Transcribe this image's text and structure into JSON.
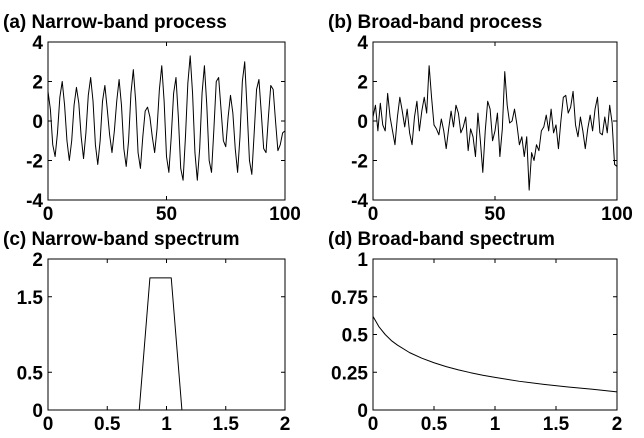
{
  "chart_data": [
    {
      "type": "line",
      "title": "(a) Narrow-band process",
      "xlabel": "",
      "ylabel": "",
      "xlim": [
        0,
        100
      ],
      "ylim": [
        -4,
        4
      ],
      "xticks": [
        0,
        50,
        100
      ],
      "xtick_labels": [
        "0",
        "50",
        "100"
      ],
      "yticks": [
        -4,
        -2,
        0,
        2,
        4
      ],
      "ytick_labels": [
        "-4",
        "-2",
        "0",
        "2",
        "4"
      ],
      "grid": false,
      "series": [
        {
          "x": [
            0,
            1,
            2,
            3,
            4,
            5,
            6,
            7,
            8,
            9,
            10,
            11,
            12,
            13,
            14,
            15,
            16,
            17,
            18,
            19,
            20,
            21,
            22,
            23,
            24,
            25,
            26,
            27,
            28,
            29,
            30,
            31,
            32,
            33,
            34,
            35,
            36,
            37,
            38,
            39,
            40,
            41,
            42,
            43,
            44,
            45,
            46,
            47,
            48,
            49,
            50,
            51,
            52,
            53,
            54,
            55,
            56,
            57,
            58,
            59,
            60,
            61,
            62,
            63,
            64,
            65,
            66,
            67,
            68,
            69,
            70,
            71,
            72,
            73,
            74,
            75,
            76,
            77,
            78,
            79,
            80,
            81,
            82,
            83,
            84,
            85,
            86,
            87,
            88,
            89,
            90,
            91,
            92,
            93,
            94,
            95,
            96,
            97,
            98,
            99,
            100
          ],
          "y": [
            1.5,
            0.6,
            -1.2,
            -1.8,
            -0.6,
            1.2,
            2.0,
            0.8,
            -1.0,
            -2.0,
            -1.0,
            0.8,
            1.7,
            0.9,
            -0.8,
            -1.9,
            -0.6,
            1.3,
            2.2,
            1.0,
            -1.2,
            -2.2,
            -1.0,
            1.0,
            1.8,
            0.6,
            -0.7,
            -1.6,
            -0.5,
            1.0,
            2.1,
            0.8,
            -1.4,
            -2.3,
            -1.0,
            1.4,
            2.6,
            1.0,
            -1.6,
            -2.4,
            -0.8,
            0.5,
            0.7,
            0.2,
            -0.8,
            -1.6,
            -0.4,
            1.6,
            2.8,
            1.0,
            -1.8,
            -2.6,
            -0.8,
            1.4,
            2.2,
            0.2,
            -2.4,
            -3.0,
            -0.8,
            1.9,
            3.3,
            1.4,
            -1.6,
            -3.0,
            -1.4,
            1.4,
            2.8,
            0.8,
            -2.0,
            -2.6,
            -0.4,
            2.0,
            2.2,
            0.6,
            -1.0,
            -1.3,
            0.2,
            1.3,
            0.4,
            -1.4,
            -2.6,
            -0.8,
            2.0,
            3.0,
            0.6,
            -2.0,
            -2.7,
            -0.6,
            1.6,
            2.1,
            0.4,
            -1.4,
            -1.6,
            0.2,
            1.8,
            1.6,
            0.0,
            -1.5,
            -1.2,
            -0.6,
            -0.5
          ]
        }
      ]
    },
    {
      "type": "line",
      "title": "(b) Broad-band process",
      "xlabel": "",
      "ylabel": "",
      "xlim": [
        0,
        100
      ],
      "ylim": [
        -4,
        4
      ],
      "xticks": [
        0,
        50,
        100
      ],
      "xtick_labels": [
        "0",
        "50",
        "100"
      ],
      "yticks": [
        -4,
        -2,
        0,
        2,
        4
      ],
      "ytick_labels": [
        "-4",
        "-2",
        "0",
        "2",
        "4"
      ],
      "grid": false,
      "series": [
        {
          "x": [
            0,
            1,
            2,
            3,
            4,
            5,
            6,
            7,
            8,
            9,
            10,
            11,
            12,
            13,
            14,
            15,
            16,
            17,
            18,
            19,
            20,
            21,
            22,
            23,
            24,
            25,
            26,
            27,
            28,
            29,
            30,
            31,
            32,
            33,
            34,
            35,
            36,
            37,
            38,
            39,
            40,
            41,
            42,
            43,
            44,
            45,
            46,
            47,
            48,
            49,
            50,
            51,
            52,
            53,
            54,
            55,
            56,
            57,
            58,
            59,
            60,
            61,
            62,
            63,
            64,
            65,
            66,
            67,
            68,
            69,
            70,
            71,
            72,
            73,
            74,
            75,
            76,
            77,
            78,
            79,
            80,
            81,
            82,
            83,
            84,
            85,
            86,
            87,
            88,
            89,
            90,
            91,
            92,
            93,
            94,
            95,
            96,
            97,
            98,
            99,
            100
          ],
          "y": [
            0.2,
            0.8,
            -0.5,
            0.9,
            -0.2,
            -0.5,
            1.4,
            0.2,
            -0.5,
            -1.2,
            0.2,
            1.2,
            0.5,
            -0.3,
            0.6,
            -0.6,
            -1.2,
            0.2,
            1.0,
            -0.5,
            0.5,
            1.2,
            0.4,
            2.8,
            1.2,
            -0.2,
            -0.4,
            -0.7,
            0.1,
            -0.5,
            -1.4,
            -0.4,
            0.5,
            -0.3,
            0.8,
            0.4,
            -0.6,
            -0.3,
            0.2,
            -1.5,
            -0.4,
            -0.8,
            -1.8,
            0.4,
            -1.0,
            -2.6,
            -0.5,
            1.0,
            0.6,
            -1.0,
            -0.5,
            0.4,
            -1.8,
            -0.4,
            2.5,
            0.8,
            -0.1,
            0.0,
            0.6,
            -0.2,
            -1.2,
            -0.8,
            -1.8,
            -0.8,
            -3.5,
            -1.6,
            -2.0,
            -1.2,
            -1.5,
            -0.5,
            -0.3,
            0.3,
            -0.5,
            0.6,
            -0.6,
            -0.2,
            -1.4,
            0.0,
            1.2,
            1.3,
            0.4,
            0.7,
            1.5,
            -0.2,
            -0.8,
            0.2,
            -0.5,
            -1.4,
            -0.4,
            0.3,
            -0.5,
            0.6,
            1.2,
            -0.6,
            -0.7,
            0.2,
            -0.6,
            0.8,
            -0.1,
            -2.2,
            -2.3
          ]
        }
      ]
    },
    {
      "type": "line",
      "title": "(c) Narrow-band spectrum",
      "xlabel": "",
      "ylabel": "",
      "xlim": [
        0,
        2
      ],
      "ylim": [
        0,
        2
      ],
      "xticks": [
        0,
        0.5,
        1,
        1.5,
        2
      ],
      "xtick_labels": [
        "0",
        "0.5",
        "1",
        "1.5",
        "2"
      ],
      "yticks": [
        0,
        0.5,
        1.5,
        2
      ],
      "ytick_labels": [
        "0",
        "0.5",
        "1.5",
        "2"
      ],
      "grid": false,
      "series": [
        {
          "x": [
            0,
            0.77,
            0.86,
            1.04,
            1.13,
            2
          ],
          "y": [
            0,
            0,
            1.75,
            1.75,
            0,
            0
          ]
        }
      ]
    },
    {
      "type": "line",
      "title": "(d) Broad-band spectrum",
      "xlabel": "",
      "ylabel": "",
      "xlim": [
        0,
        2
      ],
      "ylim": [
        0,
        1
      ],
      "xticks": [
        0,
        0.5,
        1,
        1.5,
        2
      ],
      "xtick_labels": [
        "0",
        "0.5",
        "1",
        "1.5",
        "2"
      ],
      "yticks": [
        0,
        0.25,
        0.5,
        0.75,
        1
      ],
      "ytick_labels": [
        "0",
        "0.25",
        "0.5",
        "0.75",
        "1"
      ],
      "grid": false,
      "series": [
        {
          "x": [
            0,
            0.05,
            0.1,
            0.15,
            0.2,
            0.3,
            0.4,
            0.5,
            0.6,
            0.7,
            0.8,
            0.9,
            1.0,
            1.2,
            1.4,
            1.6,
            1.8,
            2.0
          ],
          "y": [
            0.62,
            0.55,
            0.5,
            0.46,
            0.43,
            0.38,
            0.343,
            0.313,
            0.287,
            0.266,
            0.247,
            0.23,
            0.216,
            0.19,
            0.17,
            0.152,
            0.137,
            0.12
          ]
        }
      ]
    }
  ]
}
